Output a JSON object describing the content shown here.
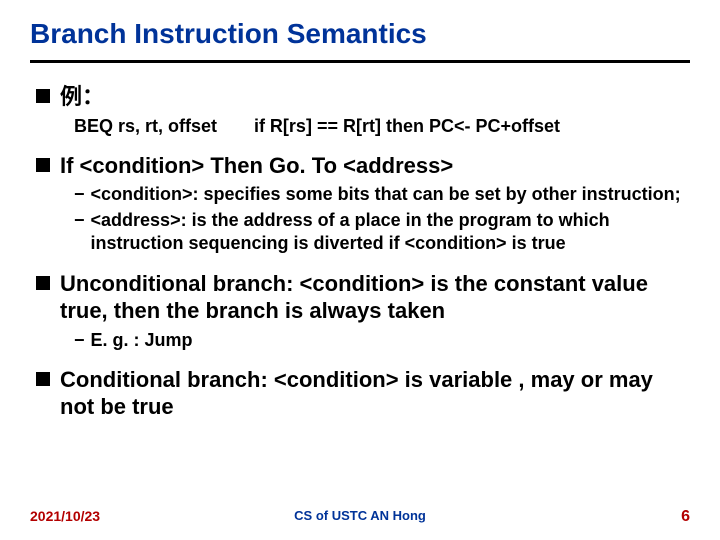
{
  "title": "Branch Instruction Semantics",
  "colors": {
    "title": "#003399",
    "rule": "#000000",
    "body_text": "#000000",
    "footer_date": "#b30000",
    "footer_center": "#003399",
    "footer_page": "#b30000",
    "background": "#ffffff"
  },
  "typography": {
    "title_fontsize": 28,
    "l1_fontsize": 22,
    "l2_fontsize": 18,
    "footer_fontsize": 14,
    "weight": "bold"
  },
  "bullets": [
    {
      "level": 1,
      "text": "例：",
      "children": [
        {
          "level": 2,
          "style": "plain",
          "text_parts": [
            "BEQ rs, rt, offset",
            "if R[rs] == R[rt] then PC<- PC+offset"
          ]
        }
      ]
    },
    {
      "level": 1,
      "text": "If <condition> Then Go. To <address>",
      "children": [
        {
          "level": 2,
          "style": "dash",
          "text": "<condition>: specifies some bits that can be set by other instruction;"
        },
        {
          "level": 2,
          "style": "dash",
          "text": "<address>: is the address of a place in the program to which instruction sequencing is diverted if <condition> is true"
        }
      ]
    },
    {
      "level": 1,
      "text": "Unconditional branch: <condition> is the constant value true, then the branch is always taken",
      "children": [
        {
          "level": 2,
          "style": "dash",
          "text": "E. g. : Jump"
        }
      ]
    },
    {
      "level": 1,
      "text": "Conditional branch: <condition> is variable , may or may not be true",
      "children": []
    }
  ],
  "footer": {
    "date": "2021/10/23",
    "center": "CS of USTC AN Hong",
    "page": "6"
  }
}
